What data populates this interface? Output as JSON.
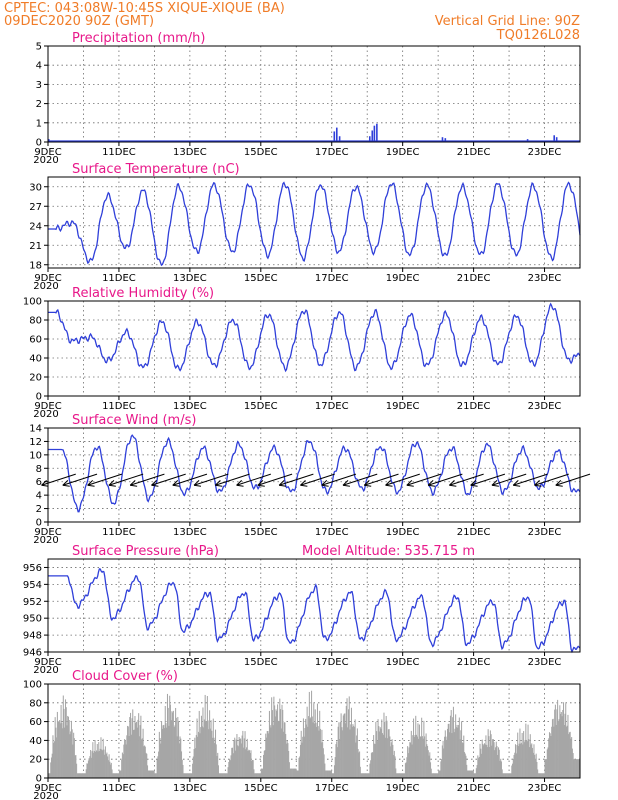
{
  "header": {
    "left_line1": "CPTEC:   043:08W-10:45S  XIQUE-XIQUE (BA)",
    "left_line2": "09DEC2020 90Z (GMT)",
    "right_line1": "Vertical Grid Line: 90Z",
    "right_line2": "TQ0126L028"
  },
  "x_axis": {
    "tick_labels": [
      "9DEC",
      "11DEC",
      "13DEC",
      "15DEC",
      "17DEC",
      "19DEC",
      "21DEC",
      "23DEC"
    ],
    "tick_sublabel": "2020",
    "start_day": 9,
    "end_day": 24
  },
  "colors": {
    "line": "#2f3fd9",
    "cloud_fill": "#a6a6a6",
    "header": "#f07c28",
    "titles": "#e8188a",
    "wind_arrows": "#000000"
  },
  "chart_data": [
    {
      "id": "precip",
      "type": "bar",
      "title": "Precipitation (mm/h)",
      "ylim": [
        0,
        5
      ],
      "yticks": [
        0,
        1,
        2,
        3,
        4,
        5
      ],
      "grid": true,
      "x_unit": "day of month (Dec 2020)",
      "points": [
        [
          17.05,
          0.55
        ],
        [
          17.12,
          0.75
        ],
        [
          17.2,
          0.3
        ],
        [
          18.05,
          0.3
        ],
        [
          18.12,
          0.6
        ],
        [
          18.18,
          0.85
        ],
        [
          18.25,
          0.95
        ],
        [
          20.1,
          0.25
        ],
        [
          20.18,
          0.2
        ],
        [
          22.5,
          0.15
        ],
        [
          23.25,
          0.35
        ],
        [
          23.32,
          0.25
        ],
        [
          9.0,
          0.15
        ]
      ]
    },
    {
      "id": "temp",
      "type": "line",
      "title": "Surface Temperature (nC)",
      "ylim": [
        17.5,
        31.5
      ],
      "yticks": [
        18,
        21,
        24,
        27,
        30
      ],
      "grid": true,
      "daily_max": [
        24.5,
        28.6,
        29.4,
        30.0,
        30.3,
        30.3,
        30.5,
        30.3,
        30.0,
        30.5,
        30.2,
        30.0,
        30.4,
        30.1,
        30.4,
        29.0
      ],
      "daily_min": [
        23.5,
        18.5,
        20.5,
        18.0,
        20.0,
        20.0,
        19.5,
        19.0,
        20.0,
        20.0,
        19.5,
        19.3,
        19.5,
        19.5,
        19.0,
        19.5
      ],
      "peak_phase": 0.68,
      "trough_phase": 0.2
    },
    {
      "id": "rh",
      "type": "line",
      "title": "Relative Humidity (%)",
      "ylim": [
        0,
        100
      ],
      "yticks": [
        0,
        20,
        40,
        60,
        80,
        100
      ],
      "grid": true,
      "daily_max": [
        88,
        62,
        67,
        78,
        78,
        80,
        86,
        90,
        88,
        88,
        85,
        86,
        82,
        84,
        95,
        50
      ],
      "daily_min": [
        58,
        37,
        30,
        28,
        32,
        30,
        30,
        33,
        30,
        30,
        32,
        32,
        33,
        33,
        38,
        45
      ],
      "peak_phase": 0.22,
      "trough_phase": 0.68
    },
    {
      "id": "wind",
      "type": "line",
      "title": "Surface Wind (m/s)",
      "ylim": [
        0,
        14
      ],
      "yticks": [
        0,
        2,
        4,
        6,
        8,
        10,
        12,
        14
      ],
      "grid": true,
      "daily_max": [
        10.8,
        11.2,
        12.8,
        12.0,
        11.0,
        11.5,
        11.0,
        12.0,
        11.0,
        11.2,
        11.8,
        11.0,
        11.5,
        10.8,
        10.5,
        7.0
      ],
      "daily_min": [
        2.0,
        2.8,
        3.5,
        4.2,
        4.5,
        5.0,
        4.5,
        4.5,
        5.0,
        4.5,
        4.5,
        4.2,
        4.5,
        5.0,
        4.5,
        5.5
      ],
      "peak_phase": 0.38,
      "trough_phase": 0.85,
      "wind_barbs": {
        "direction_from_deg": 72,
        "positions": [
          9.3,
          9.9,
          10.6,
          11.2,
          11.8,
          12.4,
          13.0,
          13.6,
          14.2,
          14.8,
          15.4,
          16.0,
          16.6,
          17.2,
          17.8,
          18.4,
          19.0,
          19.6,
          20.2,
          20.8,
          21.4,
          22.0,
          22.6,
          23.2,
          23.8
        ],
        "speeds": [
          6,
          7,
          8,
          7,
          7,
          8,
          7,
          7,
          8,
          7,
          8,
          7,
          7,
          7,
          7,
          7,
          8,
          7,
          8,
          7,
          7,
          7,
          7,
          7,
          6
        ]
      }
    },
    {
      "id": "pressure",
      "type": "line",
      "title": "Surface Pressure (hPa)",
      "annotation": "Model Altitude: 535.715  m",
      "ylim": [
        946,
        957
      ],
      "yticks": [
        946,
        948,
        950,
        952,
        954,
        956
      ],
      "grid": true,
      "daily_max": [
        955.0,
        955.6,
        954.8,
        954.2,
        953.0,
        953.0,
        952.8,
        953.5,
        953.0,
        953.0,
        952.5,
        952.5,
        952.0,
        952.5,
        952.0,
        950.0
      ],
      "daily_min": [
        951.5,
        950.0,
        949.0,
        948.5,
        947.5,
        947.5,
        947.0,
        947.5,
        947.5,
        947.5,
        947.0,
        947.0,
        946.8,
        946.5,
        946.2,
        946.0
      ],
      "peak_phase": 0.55,
      "trough_phase": 0.8
    },
    {
      "id": "cloud",
      "type": "area",
      "title": "Cloud Cover (%)",
      "ylim": [
        0,
        100
      ],
      "yticks": [
        0,
        20,
        40,
        60,
        80,
        100
      ],
      "grid": true,
      "daily_peak": [
        92,
        45,
        80,
        95,
        90,
        55,
        96,
        95,
        92,
        75,
        70,
        80,
        55,
        60,
        90,
        95
      ],
      "daily_base": [
        5,
        5,
        8,
        5,
        5,
        5,
        10,
        8,
        5,
        5,
        5,
        8,
        5,
        5,
        20,
        60
      ]
    }
  ]
}
